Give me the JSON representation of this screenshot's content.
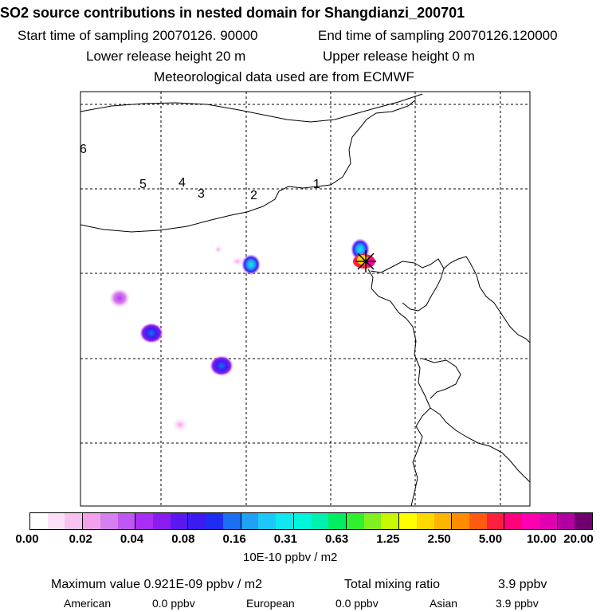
{
  "header": {
    "title": "SO2 source contributions in nested domain for Shangdianzi_200701",
    "start_label": "Start time of sampling 20070126. 90000",
    "end_label": "End time of sampling 20070126.120000",
    "lower_label": "Lower release height   20 m",
    "upper_label": "Upper release height    0 m",
    "met_label": "Meteorological data used are from ECMWF"
  },
  "map": {
    "region_numbers": [
      "6",
      "5",
      "4",
      "3",
      "2",
      "1"
    ],
    "receptor_icon": "star-marker-icon"
  },
  "colorbar": {
    "colors": [
      "#ffffff",
      "#fde0f7",
      "#f8c2f0",
      "#f2a2ec",
      "#d67ff0",
      "#c157f2",
      "#a82ef6",
      "#8a1cf0",
      "#5b17f0",
      "#3b1bf2",
      "#1f2df4",
      "#1b6ef2",
      "#20a0f6",
      "#1cc8f8",
      "#10e8f0",
      "#00f6dc",
      "#00f0b0",
      "#00ee60",
      "#30f030",
      "#80f020",
      "#c8f800",
      "#ffff00",
      "#ffd800",
      "#ffb400",
      "#ff8c00",
      "#ff5a10",
      "#ff2040",
      "#ff007a",
      "#ff00b0",
      "#e000b0",
      "#b000a0",
      "#700070"
    ],
    "ticks": [
      "0.00",
      "0.02",
      "0.04",
      "0.08",
      "0.16",
      "0.31",
      "0.63",
      "1.25",
      "2.50",
      "5.00",
      "10.00",
      "20.00"
    ],
    "unit": "10E-10 ppbv / m2"
  },
  "footer": {
    "max_label": "Maximum value  0.921E-09 ppbv / m2",
    "total_label": "Total mixing ratio",
    "total_value": "3.9 ppbv",
    "american_label": "American",
    "american_value": "0.0 ppbv",
    "european_label": "European",
    "european_value": "0.0 ppbv",
    "asian_label": "Asian",
    "asian_value": "3.9 ppbv"
  }
}
